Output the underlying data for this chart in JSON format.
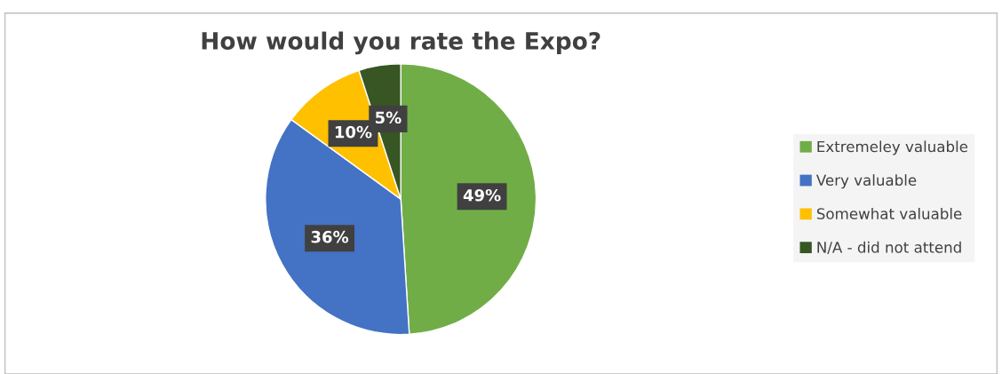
{
  "chart_data": {
    "type": "pie",
    "title": "How would you rate the Expo?",
    "categories": [
      "Extremeley valuable",
      "Very valuable",
      "Somewhat valuable",
      "N/A - did not attend"
    ],
    "values": [
      49,
      36,
      10,
      5
    ],
    "colors": [
      "#70ad47",
      "#4472c4",
      "#ffc000",
      "#375623"
    ],
    "value_labels": [
      "49%",
      "36%",
      "10%",
      "5%"
    ],
    "legend": "right"
  }
}
